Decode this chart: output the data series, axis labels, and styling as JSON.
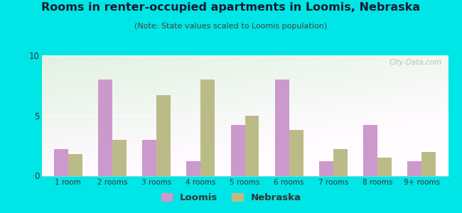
{
  "title": "Rooms in renter-occupied apartments in Loomis, Nebraska",
  "subtitle": "(Note: State values scaled to Loomis population)",
  "categories": [
    "1 room",
    "2 rooms",
    "3 rooms",
    "4 rooms",
    "5 rooms",
    "6 rooms",
    "7 rooms",
    "8 rooms",
    "9+ rooms"
  ],
  "loomis_values": [
    2.2,
    8.0,
    3.0,
    1.2,
    4.2,
    8.0,
    1.2,
    4.2,
    1.2
  ],
  "nebraska_values": [
    1.8,
    3.0,
    6.7,
    8.0,
    5.0,
    3.8,
    2.2,
    1.5,
    2.0
  ],
  "loomis_color": "#cc99cc",
  "nebraska_color": "#bbbb88",
  "ylim": [
    0,
    10
  ],
  "yticks": [
    0,
    5,
    10
  ],
  "background_outer": "#00e5e5",
  "watermark": "City-Data.com",
  "bar_width": 0.32,
  "title_color": "#1a1a2e",
  "subtitle_color": "#444444",
  "tick_color": "#333333"
}
